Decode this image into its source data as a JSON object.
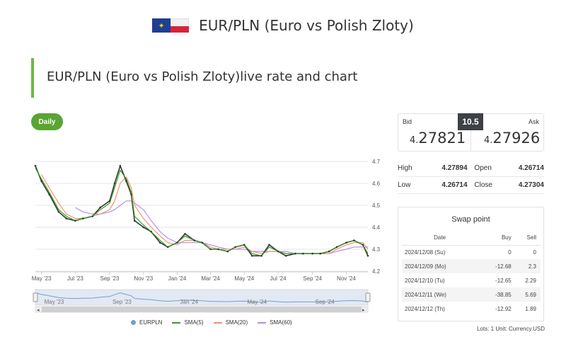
{
  "header": {
    "title": "EUR/PLN (Euro vs Polish Zloty)"
  },
  "section": {
    "title": "EUR/PLN (Euro vs Polish Zloty)live rate and chart"
  },
  "period_button": "Daily",
  "quote": {
    "bid_label": "Bid",
    "bid_prefix": "4.",
    "bid_digits": "27821",
    "ask_label": "Ask",
    "ask_prefix": "4.",
    "ask_digits": "27926",
    "spread": "10.5"
  },
  "stats": {
    "high_label": "High",
    "high": "4.27894",
    "open_label": "Open",
    "open": "4.26714",
    "low_label": "Low",
    "low": "4.26714",
    "close_label": "Close",
    "close": "4.27304"
  },
  "swap": {
    "title": "Swap point",
    "columns": [
      "Date",
      "Buy",
      "Sell"
    ],
    "rows": [
      [
        "2024/12/08 (Su)",
        "0",
        "0"
      ],
      [
        "2024/12/09 (Mo)",
        "-12.68",
        "2.3"
      ],
      [
        "2024/12/10 (Tu)",
        "-12.65",
        "2.29"
      ],
      [
        "2024/12/11 (We)",
        "-38.85",
        "5.69"
      ],
      [
        "2024/12/12 (Th)",
        "-12.92",
        "1.89"
      ]
    ],
    "footnote": "Lots: 1 Unit: Currency.USD"
  },
  "colors": {
    "brand_green": "#5aa434",
    "price": "#2f3a2f",
    "sma5": "#3a9a2a",
    "sma20": "#f08e6a",
    "sma60": "#b88ee6",
    "navigator": "#6f9fd8"
  },
  "chart_data": {
    "type": "line",
    "x": [
      "2023-04-20",
      "2023-05-01",
      "2023-05-15",
      "2023-06-01",
      "2023-06-15",
      "2023-07-01",
      "2023-07-15",
      "2023-08-01",
      "2023-08-15",
      "2023-09-01",
      "2023-09-10",
      "2023-09-20",
      "2023-10-01",
      "2023-10-10",
      "2023-10-16",
      "2023-11-01",
      "2023-11-15",
      "2023-12-01",
      "2023-12-15",
      "2024-01-01",
      "2024-01-15",
      "2024-02-01",
      "2024-02-15",
      "2024-03-01",
      "2024-03-15",
      "2024-04-01",
      "2024-04-15",
      "2024-05-01",
      "2024-05-15",
      "2024-06-01",
      "2024-06-15",
      "2024-07-01",
      "2024-07-15",
      "2024-08-01",
      "2024-08-15",
      "2024-09-01",
      "2024-09-15",
      "2024-10-01",
      "2024-10-15",
      "2024-11-01",
      "2024-11-15",
      "2024-12-01",
      "2024-12-10"
    ],
    "series": [
      {
        "name": "EURPLN",
        "values": [
          4.68,
          4.61,
          4.55,
          4.47,
          4.44,
          4.43,
          4.44,
          4.45,
          4.49,
          4.52,
          4.6,
          4.68,
          4.61,
          4.55,
          4.43,
          4.4,
          4.38,
          4.33,
          4.31,
          4.33,
          4.37,
          4.34,
          4.33,
          4.3,
          4.3,
          4.29,
          4.31,
          4.32,
          4.27,
          4.27,
          4.32,
          4.29,
          4.27,
          4.28,
          4.28,
          4.28,
          4.28,
          4.29,
          4.31,
          4.33,
          4.34,
          4.32,
          4.27
        ]
      },
      {
        "name": "SMA(5)",
        "values": [
          4.67,
          4.62,
          4.56,
          4.48,
          4.45,
          4.43,
          4.44,
          4.45,
          4.48,
          4.51,
          4.58,
          4.66,
          4.62,
          4.56,
          4.45,
          4.41,
          4.38,
          4.34,
          4.31,
          4.33,
          4.36,
          4.34,
          4.33,
          4.3,
          4.3,
          4.29,
          4.31,
          4.32,
          4.28,
          4.27,
          4.31,
          4.29,
          4.28,
          4.28,
          4.28,
          4.28,
          4.28,
          4.29,
          4.31,
          4.33,
          4.34,
          4.32,
          4.28
        ]
      },
      {
        "name": "SMA(20)",
        "values": [
          null,
          4.64,
          4.58,
          4.51,
          4.46,
          4.44,
          4.44,
          4.45,
          4.46,
          4.48,
          4.52,
          4.6,
          4.63,
          4.58,
          4.5,
          4.44,
          4.4,
          4.36,
          4.33,
          4.32,
          4.34,
          4.34,
          4.33,
          4.31,
          4.3,
          4.3,
          4.3,
          4.31,
          4.29,
          4.28,
          4.29,
          4.29,
          4.28,
          4.28,
          4.28,
          4.28,
          4.28,
          4.28,
          4.3,
          4.32,
          4.33,
          4.33,
          4.3
        ]
      },
      {
        "name": "SMA(60)",
        "values": [
          null,
          null,
          null,
          null,
          null,
          4.49,
          4.47,
          4.46,
          4.46,
          4.47,
          4.48,
          4.5,
          4.52,
          4.52,
          4.51,
          4.48,
          4.43,
          4.38,
          4.35,
          4.33,
          4.33,
          4.33,
          4.33,
          4.32,
          4.31,
          4.3,
          4.3,
          4.3,
          4.29,
          4.29,
          4.29,
          4.29,
          4.29,
          4.28,
          4.28,
          4.28,
          4.28,
          4.28,
          4.29,
          4.3,
          4.31,
          4.31,
          4.31
        ]
      }
    ],
    "x_ticks": [
      "May '23",
      "Jul '23",
      "Sep '23",
      "Nov '23",
      "Jan '24",
      "Mar '24",
      "May '24",
      "Jul '24",
      "Sep '24",
      "Nov '24"
    ],
    "y_ticks": [
      "4.7",
      "4.6",
      "4.5",
      "4.4",
      "4.3",
      "4.2"
    ],
    "ylim": [
      4.2,
      4.7
    ],
    "navigator_labels": [
      "May '23",
      "Sep '23",
      "Jan '24",
      "May '24",
      "Sep '24"
    ],
    "legend": [
      "EURPLN",
      "SMA(5)",
      "SMA(20)",
      "SMA(60)"
    ],
    "legend_position": "bottom",
    "grid": true
  }
}
